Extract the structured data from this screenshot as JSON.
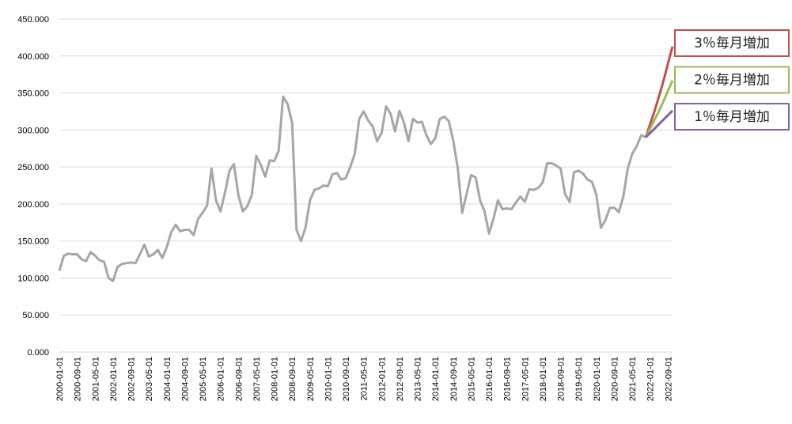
{
  "chart_data": {
    "type": "line",
    "categories": [
      "2000-01-01",
      null,
      null,
      null,
      "2000-09-01",
      null,
      null,
      null,
      "2001-05-01",
      null,
      null,
      null,
      "2002-01-01",
      null,
      null,
      null,
      "2002-09-01",
      null,
      null,
      null,
      "2003-05-01",
      null,
      null,
      null,
      "2004-01-01",
      null,
      null,
      null,
      "2004-09-01",
      null,
      null,
      null,
      "2005-05-01",
      null,
      null,
      null,
      "2006-01-01",
      null,
      null,
      null,
      "2006-09-01",
      null,
      null,
      null,
      "2007-05-01",
      null,
      null,
      null,
      "2008-01-01",
      null,
      null,
      null,
      "2008-09-01",
      null,
      null,
      null,
      "2009-05-01",
      null,
      null,
      null,
      "2010-01-01",
      null,
      null,
      null,
      "2010-09-01",
      null,
      null,
      null,
      "2011-05-01",
      null,
      null,
      null,
      "2012-01-01",
      null,
      null,
      null,
      "2012-09-01",
      null,
      null,
      null,
      "2013-05-01",
      null,
      null,
      null,
      "2014-01-01",
      null,
      null,
      null,
      "2014-09-01",
      null,
      null,
      null,
      "2015-05-01",
      null,
      null,
      null,
      "2016-01-01",
      null,
      null,
      null,
      "2016-09-01",
      null,
      null,
      null,
      "2017-05-01",
      null,
      null,
      null,
      "2018-01-01",
      null,
      null,
      null,
      "2018-09-01",
      null,
      null,
      null,
      "2019-05-01",
      null,
      null,
      null,
      "2020-01-01",
      null,
      null,
      null,
      "2020-09-01",
      null,
      null,
      null,
      "2021-05-01",
      null,
      null,
      null,
      "2022-01-01",
      null,
      null,
      null,
      "2022-09-01",
      null
    ],
    "series": [
      {
        "color": "#a6a6a6",
        "values": [
          110,
          130,
          133,
          132,
          132,
          125,
          123,
          135,
          130,
          124,
          122,
          100,
          96,
          115,
          119,
          120,
          121,
          120,
          132,
          145,
          129,
          132,
          138,
          127,
          142,
          162,
          172,
          163,
          165,
          165,
          158,
          180,
          188,
          198,
          248,
          205,
          190,
          215,
          245,
          254,
          212,
          190,
          197,
          212,
          265,
          253,
          237,
          259,
          258,
          272,
          345,
          335,
          310,
          165,
          150,
          168,
          205,
          219,
          221,
          225,
          224,
          240,
          242,
          233,
          235,
          250,
          268,
          315,
          325,
          313,
          305,
          285,
          296,
          332,
          322,
          298,
          326,
          310,
          285,
          315,
          310,
          311,
          293,
          281,
          289,
          315,
          318,
          312,
          286,
          249,
          188,
          214,
          239,
          236,
          205,
          190,
          160,
          180,
          205,
          193,
          194,
          193,
          202,
          210,
          203,
          220,
          219,
          222,
          229,
          255,
          255,
          252,
          248,
          213,
          203,
          243,
          245,
          241,
          233,
          230,
          212,
          168,
          178,
          195,
          195,
          189,
          210,
          248,
          268,
          278,
          293,
          290,
          null,
          null,
          null,
          null,
          null,
          null
        ]
      },
      {
        "name": "3％毎月増加",
        "color": "#c0504d",
        "values": [
          null,
          null,
          null,
          null,
          null,
          null,
          null,
          null,
          null,
          null,
          null,
          null,
          null,
          null,
          null,
          null,
          null,
          null,
          null,
          null,
          null,
          null,
          null,
          null,
          null,
          null,
          null,
          null,
          null,
          null,
          null,
          null,
          null,
          null,
          null,
          null,
          null,
          null,
          null,
          null,
          null,
          null,
          null,
          null,
          null,
          null,
          null,
          null,
          null,
          null,
          null,
          null,
          null,
          null,
          null,
          null,
          null,
          null,
          null,
          null,
          null,
          null,
          null,
          null,
          null,
          null,
          null,
          null,
          null,
          null,
          null,
          null,
          null,
          null,
          null,
          null,
          null,
          null,
          null,
          null,
          null,
          null,
          null,
          null,
          null,
          null,
          null,
          null,
          null,
          null,
          null,
          null,
          null,
          null,
          null,
          null,
          null,
          null,
          null,
          null,
          null,
          null,
          null,
          null,
          null,
          null,
          null,
          null,
          null,
          null,
          null,
          null,
          null,
          null,
          null,
          null,
          null,
          null,
          null,
          null,
          null,
          null,
          null,
          null,
          null,
          null,
          null,
          null,
          null,
          null,
          null,
          290,
          308,
          326,
          346,
          367,
          390,
          413
        ]
      },
      {
        "name": "2％毎月増加",
        "color": "#9bbb59",
        "values": [
          null,
          null,
          null,
          null,
          null,
          null,
          null,
          null,
          null,
          null,
          null,
          null,
          null,
          null,
          null,
          null,
          null,
          null,
          null,
          null,
          null,
          null,
          null,
          null,
          null,
          null,
          null,
          null,
          null,
          null,
          null,
          null,
          null,
          null,
          null,
          null,
          null,
          null,
          null,
          null,
          null,
          null,
          null,
          null,
          null,
          null,
          null,
          null,
          null,
          null,
          null,
          null,
          null,
          null,
          null,
          null,
          null,
          null,
          null,
          null,
          null,
          null,
          null,
          null,
          null,
          null,
          null,
          null,
          null,
          null,
          null,
          null,
          null,
          null,
          null,
          null,
          null,
          null,
          null,
          null,
          null,
          null,
          null,
          null,
          null,
          null,
          null,
          null,
          null,
          null,
          null,
          null,
          null,
          null,
          null,
          null,
          null,
          null,
          null,
          null,
          null,
          null,
          null,
          null,
          null,
          null,
          null,
          null,
          null,
          null,
          null,
          null,
          null,
          null,
          null,
          null,
          null,
          null,
          null,
          null,
          null,
          null,
          null,
          null,
          null,
          null,
          null,
          null,
          null,
          null,
          null,
          290,
          302,
          314,
          326,
          339,
          353,
          367
        ]
      },
      {
        "name": "1％毎月増加",
        "color": "#8064a2",
        "values": [
          null,
          null,
          null,
          null,
          null,
          null,
          null,
          null,
          null,
          null,
          null,
          null,
          null,
          null,
          null,
          null,
          null,
          null,
          null,
          null,
          null,
          null,
          null,
          null,
          null,
          null,
          null,
          null,
          null,
          null,
          null,
          null,
          null,
          null,
          null,
          null,
          null,
          null,
          null,
          null,
          null,
          null,
          null,
          null,
          null,
          null,
          null,
          null,
          null,
          null,
          null,
          null,
          null,
          null,
          null,
          null,
          null,
          null,
          null,
          null,
          null,
          null,
          null,
          null,
          null,
          null,
          null,
          null,
          null,
          null,
          null,
          null,
          null,
          null,
          null,
          null,
          null,
          null,
          null,
          null,
          null,
          null,
          null,
          null,
          null,
          null,
          null,
          null,
          null,
          null,
          null,
          null,
          null,
          null,
          null,
          null,
          null,
          null,
          null,
          null,
          null,
          null,
          null,
          null,
          null,
          null,
          null,
          null,
          null,
          null,
          null,
          null,
          null,
          null,
          null,
          null,
          null,
          null,
          null,
          null,
          null,
          null,
          null,
          null,
          null,
          null,
          null,
          null,
          null,
          null,
          null,
          290,
          296,
          302,
          308,
          314,
          320,
          326
        ]
      }
    ],
    "ylim": [
      0,
      450
    ],
    "yticks": [
      {
        "value": 0,
        "label": "0.000"
      },
      {
        "value": 50,
        "label": "50.000"
      },
      {
        "value": 100,
        "label": "100.000"
      },
      {
        "value": 150,
        "label": "150.000"
      },
      {
        "value": 200,
        "label": "200.000"
      },
      {
        "value": 250,
        "label": "250.000"
      },
      {
        "value": 300,
        "label": "300.000"
      },
      {
        "value": 350,
        "label": "350.000"
      },
      {
        "value": 400,
        "label": "400.000"
      },
      {
        "value": 450,
        "label": "450.000"
      }
    ],
    "grid": true,
    "legend": "right"
  }
}
